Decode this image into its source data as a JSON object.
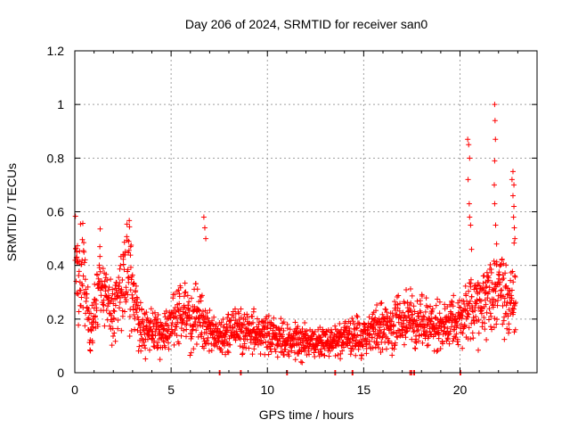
{
  "chart_data": {
    "type": "scatter",
    "title": "Day 206 of 2024, SRMTID for receiver san0",
    "xlabel": "GPS time / hours",
    "ylabel": "SRMTID / TECUs",
    "xlim": [
      0,
      24
    ],
    "ylim": [
      0,
      1.2
    ],
    "grid": true,
    "marker": "+",
    "color": "#ff0000",
    "xticks": [
      0,
      5,
      10,
      15,
      20
    ],
    "xtick_labels": [
      "0",
      "5",
      "10",
      "15",
      "20"
    ],
    "yticks": [
      0,
      0.2,
      0.4,
      0.6,
      0.8,
      1.0,
      1.2
    ],
    "ytick_labels": [
      "0",
      "0.2",
      "0.4",
      "0.6",
      "0.8",
      "1",
      "1.2"
    ],
    "series": [
      {
        "name": "SRMTID",
        "profile_knots": [
          {
            "x": 0.0,
            "y": 0.38
          },
          {
            "x": 0.5,
            "y": 0.36
          },
          {
            "x": 0.8,
            "y": 0.15
          },
          {
            "x": 1.3,
            "y": 0.33
          },
          {
            "x": 2.0,
            "y": 0.22
          },
          {
            "x": 2.8,
            "y": 0.4
          },
          {
            "x": 3.4,
            "y": 0.16
          },
          {
            "x": 4.5,
            "y": 0.15
          },
          {
            "x": 5.5,
            "y": 0.22
          },
          {
            "x": 6.5,
            "y": 0.2
          },
          {
            "x": 7.5,
            "y": 0.14
          },
          {
            "x": 9.0,
            "y": 0.16
          },
          {
            "x": 10.5,
            "y": 0.13
          },
          {
            "x": 12.0,
            "y": 0.11
          },
          {
            "x": 13.5,
            "y": 0.12
          },
          {
            "x": 14.5,
            "y": 0.14
          },
          {
            "x": 16.0,
            "y": 0.17
          },
          {
            "x": 17.5,
            "y": 0.19
          },
          {
            "x": 19.0,
            "y": 0.18
          },
          {
            "x": 20.0,
            "y": 0.19
          },
          {
            "x": 20.5,
            "y": 0.25
          },
          {
            "x": 21.5,
            "y": 0.28
          },
          {
            "x": 22.0,
            "y": 0.3
          },
          {
            "x": 22.8,
            "y": 0.3
          }
        ],
        "spikes": [
          {
            "x": 6.7,
            "y": 0.58
          },
          {
            "x": 6.75,
            "y": 0.54
          },
          {
            "x": 6.8,
            "y": 0.5
          },
          {
            "x": 20.4,
            "y": 0.87
          },
          {
            "x": 20.45,
            "y": 0.85
          },
          {
            "x": 20.5,
            "y": 0.8
          },
          {
            "x": 20.42,
            "y": 0.72
          },
          {
            "x": 20.48,
            "y": 0.63
          },
          {
            "x": 20.5,
            "y": 0.58
          },
          {
            "x": 20.55,
            "y": 0.55
          },
          {
            "x": 20.6,
            "y": 0.46
          },
          {
            "x": 21.8,
            "y": 1.0
          },
          {
            "x": 21.82,
            "y": 0.94
          },
          {
            "x": 21.84,
            "y": 0.87
          },
          {
            "x": 21.8,
            "y": 0.79
          },
          {
            "x": 21.78,
            "y": 0.7
          },
          {
            "x": 21.8,
            "y": 0.63
          },
          {
            "x": 21.85,
            "y": 0.55
          },
          {
            "x": 21.9,
            "y": 0.48
          },
          {
            "x": 22.75,
            "y": 0.75
          },
          {
            "x": 22.7,
            "y": 0.72
          },
          {
            "x": 22.8,
            "y": 0.7
          },
          {
            "x": 22.75,
            "y": 0.66
          },
          {
            "x": 22.8,
            "y": 0.62
          },
          {
            "x": 22.78,
            "y": 0.58
          },
          {
            "x": 22.82,
            "y": 0.54
          },
          {
            "x": 22.85,
            "y": 0.5
          },
          {
            "x": 2.8,
            "y": 0.49
          },
          {
            "x": 2.9,
            "y": 0.47
          },
          {
            "x": 1.3,
            "y": 0.47
          },
          {
            "x": 0.1,
            "y": 0.45
          },
          {
            "x": 14.4,
            "y": 0.0
          },
          {
            "x": 17.5,
            "y": 0.0
          }
        ],
        "zero_points": [
          7.5,
          8.6,
          11.0,
          13.5,
          14.4,
          17.4,
          17.6,
          20.0
        ]
      }
    ]
  }
}
